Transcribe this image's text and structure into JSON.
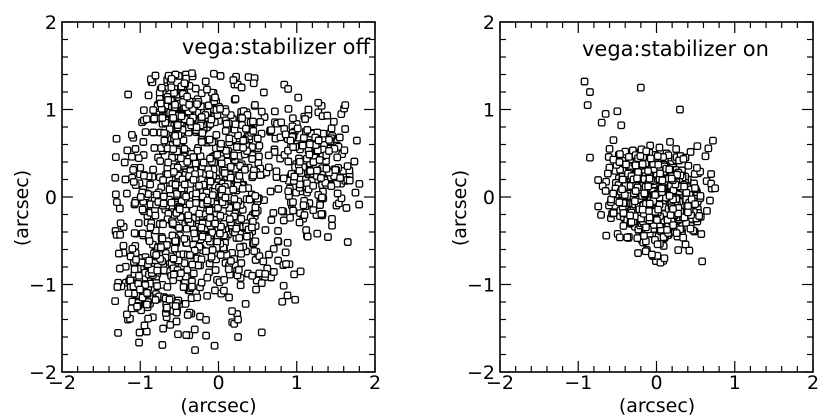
{
  "chart_data": [
    {
      "type": "scatter",
      "title": "vega:stabilizer off",
      "xlabel": "(arcsec)",
      "ylabel": "(arcsec)",
      "xlim": [
        -2,
        2
      ],
      "ylim": [
        -2,
        2
      ],
      "xticks": [
        "-2",
        "-1",
        "0",
        "1",
        "2"
      ],
      "yticks": [
        "-2",
        "-1",
        "0",
        "1",
        "2"
      ],
      "grid": false,
      "marker": "open-square",
      "color": "#000000",
      "distribution": {
        "n": 1300,
        "seed": 11,
        "clusters": [
          {
            "cx": -0.1,
            "cy": 0.05,
            "sx": 0.55,
            "sy": 0.62,
            "w": 0.62
          },
          {
            "cx": 1.25,
            "cy": 0.35,
            "sx": 0.25,
            "sy": 0.35,
            "w": 0.14
          },
          {
            "cx": -0.85,
            "cy": -0.9,
            "sx": 0.3,
            "sy": 0.35,
            "w": 0.12
          },
          {
            "cx": -0.45,
            "cy": 0.95,
            "sx": 0.25,
            "sy": 0.25,
            "w": 0.12
          }
        ],
        "x_range": [
          -1.35,
          1.82
        ],
        "y_range": [
          -1.78,
          1.42
        ]
      },
      "points": [
        {
          "x": -1.32,
          "y": 0.22
        },
        {
          "x": 1.8,
          "y": 0.15
        },
        {
          "x": 1.62,
          "y": 1.05
        },
        {
          "x": 1.75,
          "y": 0.05
        },
        {
          "x": -0.55,
          "y": 1.4
        },
        {
          "x": -0.6,
          "y": 1.35
        },
        {
          "x": -0.3,
          "y": -1.75
        },
        {
          "x": -0.05,
          "y": -1.7
        },
        {
          "x": 0.2,
          "y": -1.45
        },
        {
          "x": 0.25,
          "y": -1.6
        },
        {
          "x": -1.15,
          "y": -1.1
        },
        {
          "x": -1.25,
          "y": -0.3
        },
        {
          "x": 1.15,
          "y": 1.0
        },
        {
          "x": 0.45,
          "y": 1.3
        },
        {
          "x": 0.95,
          "y": 0.9
        },
        {
          "x": 1.45,
          "y": -0.25
        },
        {
          "x": 1.05,
          "y": -0.85
        },
        {
          "x": 0.25,
          "y": -1.4
        }
      ]
    },
    {
      "type": "scatter",
      "title": "vega:stabilizer on",
      "xlabel": "(arcsec)",
      "ylabel": "(arcsec)",
      "xlim": [
        -2,
        2
      ],
      "ylim": [
        -2,
        2
      ],
      "xticks": [
        "-2",
        "-1",
        "0",
        "1",
        "2"
      ],
      "yticks": [
        "-2",
        "-1",
        "0",
        "1",
        "2"
      ],
      "grid": false,
      "marker": "open-square",
      "color": "#000000",
      "distribution": {
        "n": 1400,
        "seed": 29,
        "clusters": [
          {
            "cx": 0.0,
            "cy": -0.02,
            "sx": 0.2,
            "sy": 0.2,
            "w": 0.75
          },
          {
            "cx": -0.05,
            "cy": 0.0,
            "sx": 0.32,
            "sy": 0.3,
            "w": 0.25
          }
        ],
        "x_range": [
          -0.75,
          0.75
        ],
        "y_range": [
          -0.75,
          0.65
        ]
      },
      "points": [
        {
          "x": -0.92,
          "y": 1.32
        },
        {
          "x": -0.85,
          "y": 1.2
        },
        {
          "x": -0.88,
          "y": 1.05
        },
        {
          "x": -0.65,
          "y": 0.95
        },
        {
          "x": -0.7,
          "y": 0.85
        },
        {
          "x": -0.5,
          "y": 0.98
        },
        {
          "x": -0.45,
          "y": 0.82
        },
        {
          "x": -0.85,
          "y": 0.45
        },
        {
          "x": 0.3,
          "y": 1.0
        },
        {
          "x": -0.2,
          "y": 1.25
        },
        {
          "x": 0.75,
          "y": 0.1
        },
        {
          "x": -0.6,
          "y": 0.55
        },
        {
          "x": 0.05,
          "y": -0.75
        },
        {
          "x": 0.1,
          "y": -0.7
        },
        {
          "x": -0.55,
          "y": 0.65
        }
      ]
    }
  ]
}
